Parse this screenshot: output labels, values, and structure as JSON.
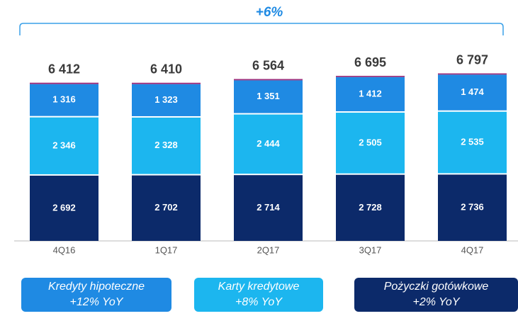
{
  "chart_data": {
    "type": "stacked-bar",
    "annotation": "+6%",
    "categories": [
      "4Q16",
      "1Q17",
      "2Q17",
      "3Q17",
      "4Q17"
    ],
    "totals": [
      6412,
      6410,
      6564,
      6695,
      6797
    ],
    "total_labels": [
      "6 412",
      "6 410",
      "6 564",
      "6 695",
      "6 797"
    ],
    "series": [
      {
        "name": "Pożyczki gotówkowe",
        "yoy": "+2% YoY",
        "color": "#0c2a6a",
        "values": [
          2692,
          2702,
          2714,
          2728,
          2736
        ],
        "value_labels": [
          "2 692",
          "2 702",
          "2 714",
          "2 728",
          "2 736"
        ]
      },
      {
        "name": "Karty kredytowe",
        "yoy": "+8% YoY",
        "color": "#1cb6ef",
        "values": [
          2346,
          2328,
          2444,
          2505,
          2535
        ],
        "value_labels": [
          "2 346",
          "2 328",
          "2 444",
          "2 505",
          "2 535"
        ]
      },
      {
        "name": "Kredyty hipoteczne",
        "yoy": "+12% YoY",
        "color": "#1f8ae3",
        "values": [
          1316,
          1323,
          1351,
          1412,
          1474
        ],
        "value_labels": [
          "1 316",
          "1 323",
          "1 351",
          "1 412",
          "1 474"
        ]
      },
      {
        "color": "#9c2f7d",
        "values": [
          58,
          57,
          55,
          50,
          52
        ]
      }
    ]
  }
}
